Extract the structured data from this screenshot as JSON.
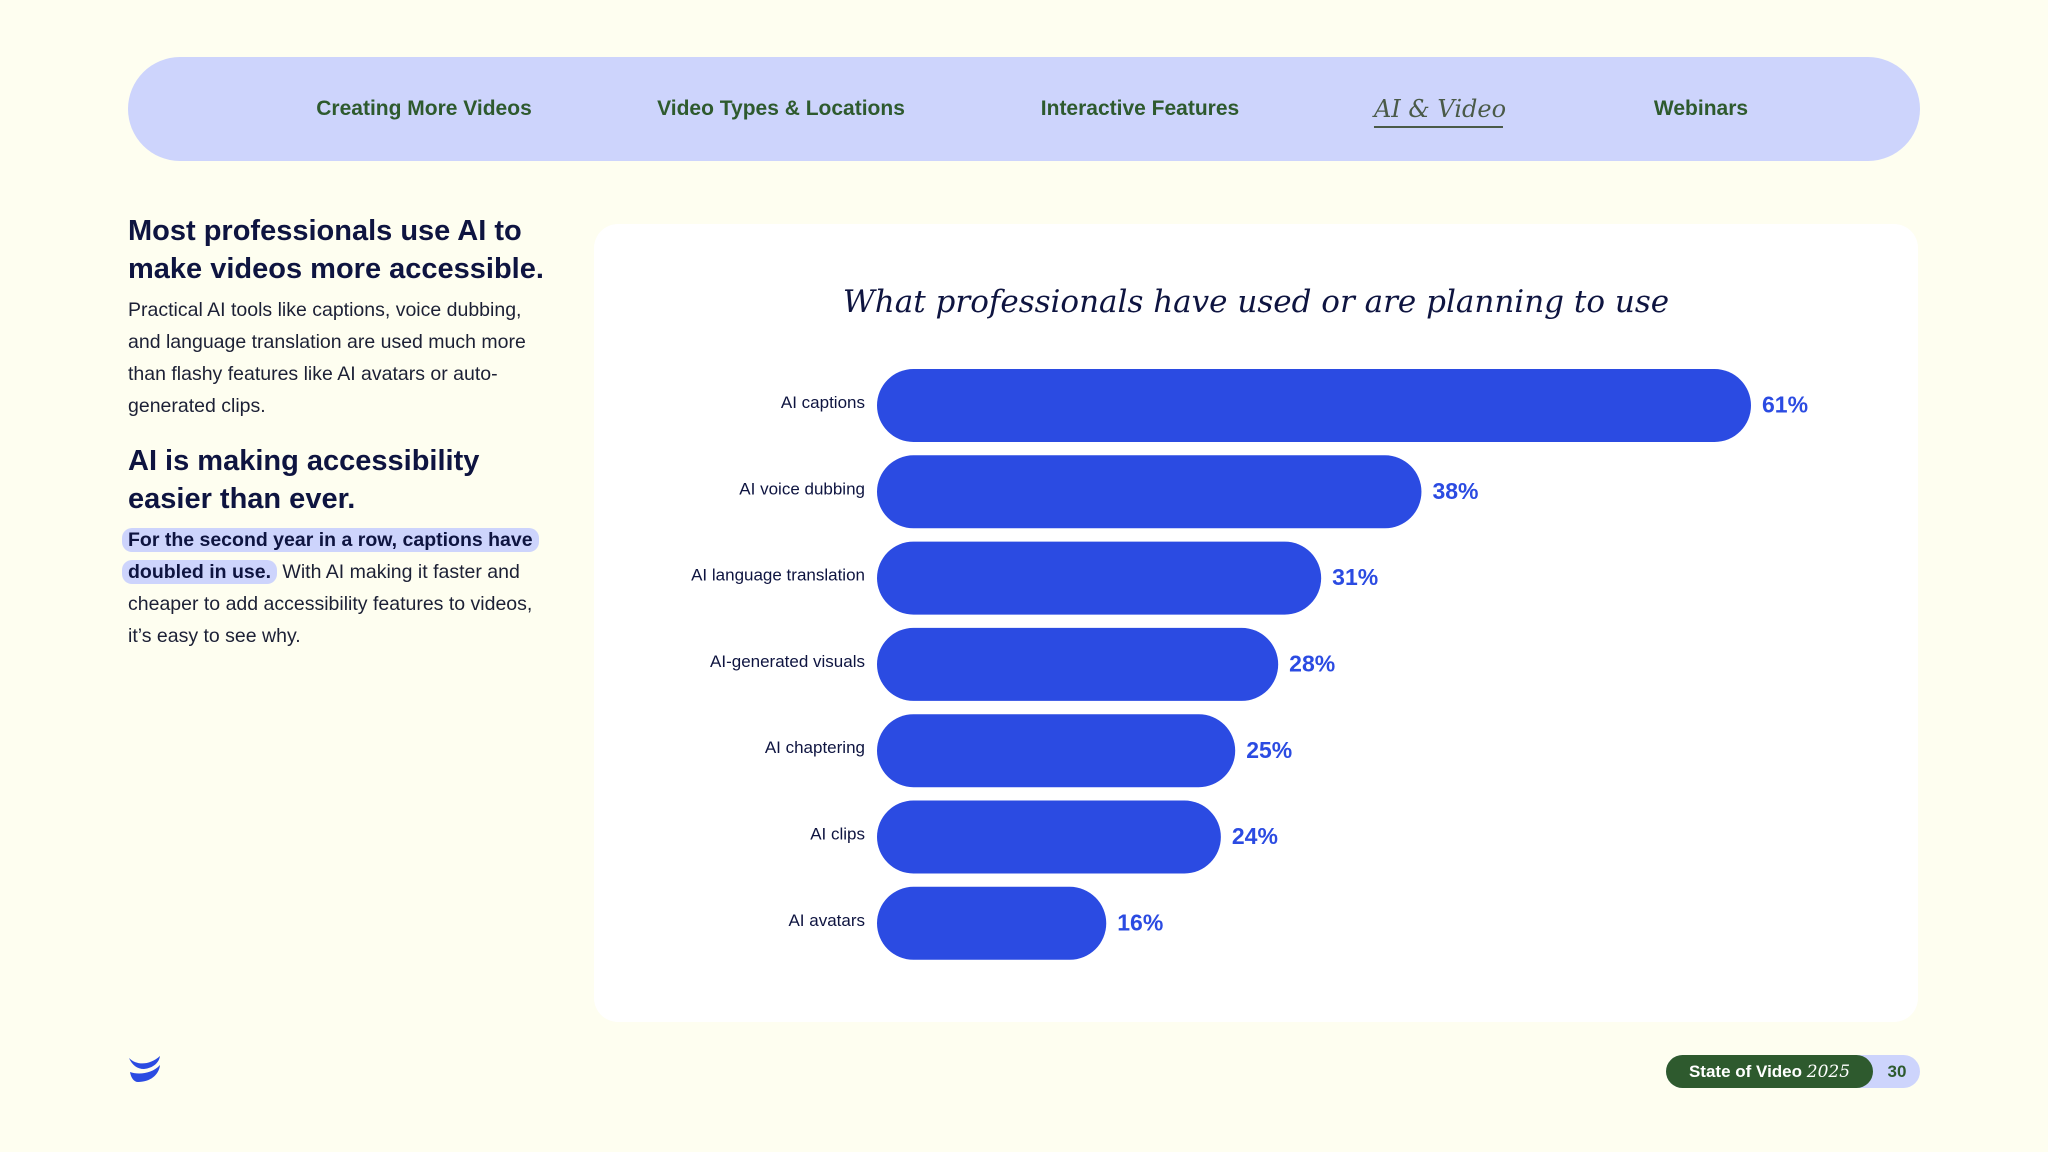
{
  "nav": {
    "items": [
      {
        "label": "Creating More Videos",
        "active": false
      },
      {
        "label": "Video Types & Locations",
        "active": false
      },
      {
        "label": "Interactive Features",
        "active": false
      },
      {
        "label": "AI & Video",
        "active": true
      },
      {
        "label": "Webinars",
        "active": false
      }
    ]
  },
  "left": {
    "heading1": "Most professionals use AI to make videos more accessible.",
    "para1": "Practical AI tools like captions, voice dubbing, and language translation are used much more than flashy features like AI avatars or auto-generated clips.",
    "heading2": "AI is making accessibility easier than ever.",
    "para2_highlight": "For the second year in a row, captions have doubled in use.",
    "para2_rest": " With AI making it faster and cheaper to add accessibility features to videos, it’s easy to see why."
  },
  "chart_data": {
    "type": "bar",
    "orientation": "horizontal",
    "title": "What professionals have used or are planning to use",
    "categories": [
      "AI captions",
      "AI voice dubbing",
      "AI language translation",
      "AI-generated visuals",
      "AI chaptering",
      "AI clips",
      "AI avatars"
    ],
    "values": [
      61,
      38,
      31,
      28,
      25,
      24,
      16
    ],
    "value_labels": [
      "61%",
      "38%",
      "31%",
      "28%",
      "25%",
      "24%",
      "16%"
    ],
    "unit": "%",
    "bar_color": "#2B4BE2",
    "grid": false,
    "legend": "none"
  },
  "footer": {
    "title": "State of Video",
    "year": "2025",
    "page": "30"
  },
  "colors": {
    "background": "#FEFEF0",
    "nav_bg": "#CDD4FC",
    "nav_text": "#2E5A2E",
    "accent_blue": "#2B4BE2",
    "dark_text": "#0E1440"
  },
  "icons": {
    "logo": "wistia-logo-icon"
  }
}
